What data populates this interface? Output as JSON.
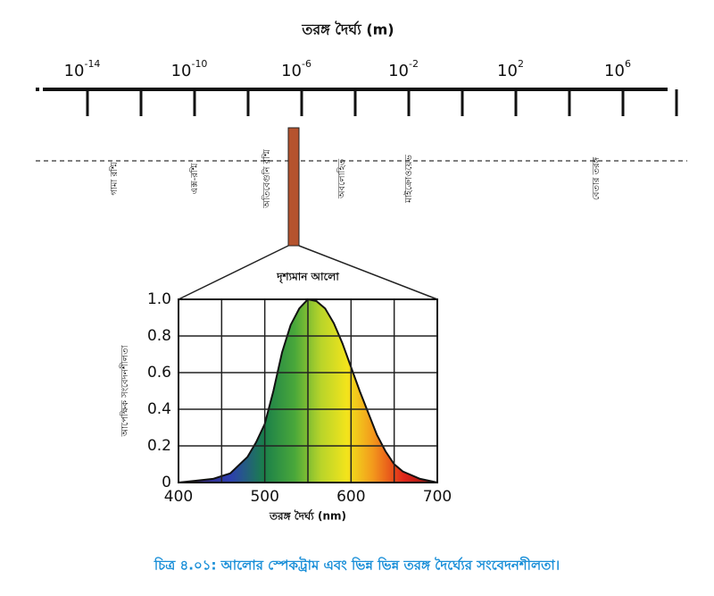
{
  "spectrum": {
    "axis_label": "তরঙ্গ দৈর্ঘ্য (m)",
    "base": "10",
    "ticks": [
      -14,
      -12,
      -10,
      -8,
      -6,
      -4,
      -2,
      0,
      2,
      4,
      6,
      8
    ],
    "labeled_ticks": [
      -14,
      -10,
      -6,
      -2,
      2,
      6
    ],
    "bands": [
      {
        "label": "গামা রশ্মি",
        "position": -13
      },
      {
        "label": "এক্স-রশ্মি",
        "position": -10
      },
      {
        "label": "অতিবেগুনি রশ্মি",
        "position": -7.3
      },
      {
        "label": "অবলোহিত",
        "position": -4.5
      },
      {
        "label": "মাইক্রোওয়েভ",
        "position": -2
      },
      {
        "label": "বেতার তরঙ্গ",
        "position": 5
      }
    ],
    "visible_label": "দৃশ্যমান আলো",
    "visible_position": -6.3
  },
  "chart_data": {
    "type": "area",
    "x": [
      400,
      420,
      440,
      460,
      480,
      490,
      500,
      510,
      520,
      530,
      540,
      550,
      560,
      570,
      580,
      590,
      600,
      610,
      620,
      630,
      640,
      650,
      660,
      680,
      700
    ],
    "values": [
      0,
      0.01,
      0.02,
      0.05,
      0.14,
      0.22,
      0.32,
      0.5,
      0.71,
      0.86,
      0.95,
      1.0,
      0.99,
      0.95,
      0.87,
      0.76,
      0.63,
      0.5,
      0.38,
      0.26,
      0.17,
      0.1,
      0.06,
      0.02,
      0
    ],
    "xlim": [
      400,
      700
    ],
    "ylim": [
      0,
      1.0
    ],
    "xticks": [
      400,
      500,
      600,
      700
    ],
    "xgrid": [
      450,
      500,
      550,
      600,
      650
    ],
    "yticks": [
      {
        "value": 0,
        "label": "0"
      },
      {
        "value": 0.2,
        "label": "0.2"
      },
      {
        "value": 0.4,
        "label": "0.4"
      },
      {
        "value": 0.6,
        "label": "0.6"
      },
      {
        "value": 0.8,
        "label": "0.8"
      },
      {
        "value": 1.0,
        "label": "1.0"
      }
    ],
    "ylabel": "আপেক্ষিক সংবেদনশীলতা",
    "xlabel": "তরঙ্গ দৈর্ঘ্য (nm)",
    "grid": true
  },
  "caption": "চিত্র ৪.০১: আলোর স্পেকট্রাম এবং ভিন্ন ভিন্ন তরঙ্গ দৈর্ঘ্যের সংবেদনশীলতা।"
}
